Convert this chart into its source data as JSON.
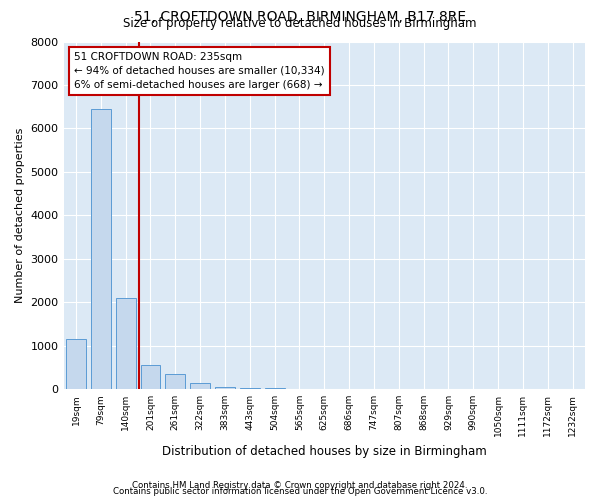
{
  "title1": "51, CROFTDOWN ROAD, BIRMINGHAM, B17 8RE",
  "title2": "Size of property relative to detached houses in Birmingham",
  "xlabel": "Distribution of detached houses by size in Birmingham",
  "ylabel": "Number of detached properties",
  "footnote1": "Contains HM Land Registry data © Crown copyright and database right 2024.",
  "footnote2": "Contains public sector information licensed under the Open Government Licence v3.0.",
  "bar_color": "#c5d8ed",
  "bar_edge_color": "#5b9bd5",
  "background_color": "#dce9f5",
  "categories": [
    "19sqm",
    "79sqm",
    "140sqm",
    "201sqm",
    "261sqm",
    "322sqm",
    "383sqm",
    "443sqm",
    "504sqm",
    "565sqm",
    "625sqm",
    "686sqm",
    "747sqm",
    "807sqm",
    "868sqm",
    "929sqm",
    "990sqm",
    "1050sqm",
    "1111sqm",
    "1172sqm",
    "1232sqm"
  ],
  "values": [
    1150,
    6450,
    2100,
    550,
    350,
    150,
    50,
    30,
    20,
    5,
    0,
    0,
    0,
    0,
    0,
    0,
    0,
    0,
    0,
    0,
    0
  ],
  "annotation_title": "51 CROFTDOWN ROAD: 235sqm",
  "annotation_line1": "← 94% of detached houses are smaller (10,334)",
  "annotation_line2": "6% of semi-detached houses are larger (668) →",
  "vline_color": "#c00000",
  "annotation_box_color": "#ffffff",
  "annotation_box_edge": "#c00000",
  "vline_x": 2.55,
  "ylim": [
    0,
    8000
  ],
  "yticks": [
    0,
    1000,
    2000,
    3000,
    4000,
    5000,
    6000,
    7000,
    8000
  ]
}
